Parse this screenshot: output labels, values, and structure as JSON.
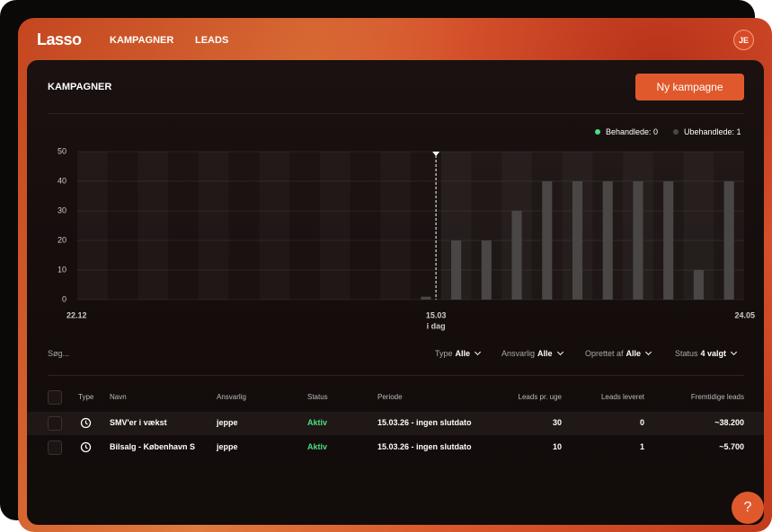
{
  "header": {
    "logo": "Lasso",
    "nav": [
      "KAMPAGNER",
      "LEADS"
    ],
    "avatar": "JE"
  },
  "panel": {
    "title": "KAMPAGNER",
    "button": "Ny kampagne"
  },
  "chart_data": {
    "type": "bar",
    "categories": [
      "22.12",
      null,
      null,
      null,
      null,
      null,
      null,
      null,
      null,
      null,
      null,
      "15.03",
      null,
      null,
      null,
      null,
      null,
      null,
      null,
      null,
      null,
      "24.05"
    ],
    "series": [
      {
        "name": "Behandlede: 0",
        "color": "#4ade80",
        "values": [
          0,
          0,
          0,
          0,
          0,
          0,
          0,
          0,
          0,
          0,
          0,
          0,
          0,
          0,
          0,
          0,
          0,
          0,
          0,
          0,
          0,
          0
        ]
      },
      {
        "name": "Ubehandlede: 1",
        "color": "#4a4645",
        "values": [
          0,
          0,
          0,
          0,
          0,
          0,
          0,
          0,
          0,
          0,
          0,
          1,
          20,
          20,
          30,
          40,
          40,
          40,
          40,
          40,
          10,
          40
        ]
      }
    ],
    "annotation": "i dag",
    "ylim": [
      0,
      50
    ],
    "yticks": [
      0,
      10,
      20,
      30,
      40,
      50
    ],
    "grid": true,
    "stacked": true
  },
  "filters": {
    "search": "Søg...",
    "items": [
      {
        "label": "Type",
        "value": "Alle"
      },
      {
        "label": "Ansvarlig",
        "value": "Alle"
      },
      {
        "label": "Oprettet af",
        "value": "Alle"
      },
      {
        "label": "Status",
        "value": "4 valgt"
      }
    ]
  },
  "table": {
    "columns": [
      "Type",
      "Navn",
      "Ansvarlig",
      "Status",
      "Periode",
      "Leads pr. uge",
      "Leads leveret",
      "Fremtidige leads"
    ],
    "rows": [
      [
        "SMV'er i vækst",
        "jeppe",
        "Aktiv",
        "15.03.26 - ingen slutdato",
        "30",
        "0",
        "~38.200"
      ],
      [
        "Bilsalg - København S",
        "jeppe",
        "Aktiv",
        "15.03.26 - ingen slutdato",
        "10",
        "1",
        "~5.700"
      ]
    ]
  },
  "help": "?"
}
